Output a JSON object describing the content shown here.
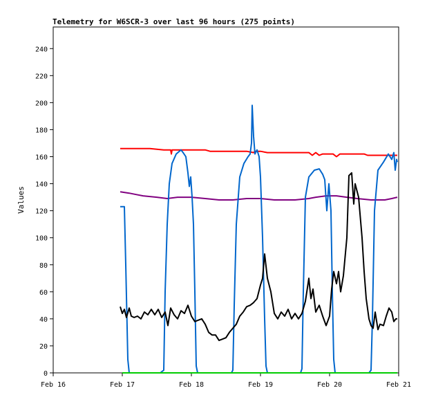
{
  "chart_data": {
    "type": "line",
    "title": "Telemetry for W6SCR-3 over last 96 hours (275 points)",
    "xlabel": "",
    "ylabel": "Values",
    "xlim": [
      0,
      5
    ],
    "ylim": [
      0,
      256
    ],
    "x_ticks": [
      {
        "x": 0,
        "label": "Feb 16"
      },
      {
        "x": 1,
        "label": "Feb 17"
      },
      {
        "x": 2,
        "label": "Feb 18"
      },
      {
        "x": 3,
        "label": "Feb 19"
      },
      {
        "x": 4,
        "label": "Feb 20"
      },
      {
        "x": 5,
        "label": "Feb 21"
      }
    ],
    "y_ticks": [
      0,
      20,
      40,
      60,
      80,
      100,
      120,
      140,
      160,
      180,
      200,
      220,
      240
    ],
    "grid": false,
    "legend": "none",
    "series": [
      {
        "color": "#ff0000",
        "points": [
          [
            0.97,
            166
          ],
          [
            1.2,
            166
          ],
          [
            1.4,
            166
          ],
          [
            1.6,
            165
          ],
          [
            1.7,
            165
          ],
          [
            1.71,
            162
          ],
          [
            1.72,
            165
          ],
          [
            2.0,
            165
          ],
          [
            2.2,
            165
          ],
          [
            2.27,
            164
          ],
          [
            2.5,
            164
          ],
          [
            2.8,
            164
          ],
          [
            2.9,
            163
          ],
          [
            2.92,
            164
          ],
          [
            3.0,
            164
          ],
          [
            3.1,
            163
          ],
          [
            3.4,
            163
          ],
          [
            3.7,
            163
          ],
          [
            3.75,
            161
          ],
          [
            3.8,
            163
          ],
          [
            3.85,
            161
          ],
          [
            3.9,
            162
          ],
          [
            4.05,
            162
          ],
          [
            4.1,
            160
          ],
          [
            4.15,
            162
          ],
          [
            4.5,
            162
          ],
          [
            4.55,
            161
          ],
          [
            4.8,
            161
          ],
          [
            4.98,
            161
          ]
        ]
      },
      {
        "color": "#800080",
        "points": [
          [
            0.97,
            134
          ],
          [
            1.1,
            133
          ],
          [
            1.2,
            132
          ],
          [
            1.3,
            131
          ],
          [
            1.5,
            130
          ],
          [
            1.65,
            129
          ],
          [
            1.8,
            130
          ],
          [
            2.0,
            130
          ],
          [
            2.2,
            129
          ],
          [
            2.4,
            128
          ],
          [
            2.6,
            128
          ],
          [
            2.8,
            129
          ],
          [
            3.0,
            129
          ],
          [
            3.2,
            128
          ],
          [
            3.5,
            128
          ],
          [
            3.7,
            129
          ],
          [
            3.8,
            130
          ],
          [
            3.95,
            131
          ],
          [
            4.1,
            131
          ],
          [
            4.25,
            130
          ],
          [
            4.4,
            129
          ],
          [
            4.6,
            128
          ],
          [
            4.8,
            128
          ],
          [
            4.9,
            129
          ],
          [
            4.98,
            130
          ]
        ]
      },
      {
        "color": "#0066cc",
        "points": [
          [
            0.97,
            123
          ],
          [
            1.03,
            123
          ],
          [
            1.05,
            80
          ],
          [
            1.08,
            10
          ],
          [
            1.1,
            0
          ],
          [
            1.55,
            0
          ],
          [
            1.6,
            2
          ],
          [
            1.62,
            60
          ],
          [
            1.65,
            110
          ],
          [
            1.68,
            140
          ],
          [
            1.72,
            155
          ],
          [
            1.78,
            162
          ],
          [
            1.85,
            165
          ],
          [
            1.88,
            163
          ],
          [
            1.92,
            160
          ],
          [
            1.95,
            148
          ],
          [
            1.97,
            138
          ],
          [
            1.99,
            145
          ],
          [
            2.01,
            130
          ],
          [
            2.03,
            110
          ],
          [
            2.05,
            60
          ],
          [
            2.07,
            5
          ],
          [
            2.09,
            0
          ],
          [
            2.58,
            0
          ],
          [
            2.6,
            2
          ],
          [
            2.62,
            50
          ],
          [
            2.65,
            110
          ],
          [
            2.7,
            145
          ],
          [
            2.76,
            155
          ],
          [
            2.82,
            160
          ],
          [
            2.85,
            162
          ],
          [
            2.87,
            170
          ],
          [
            2.88,
            198
          ],
          [
            2.9,
            175
          ],
          [
            2.92,
            162
          ],
          [
            2.95,
            165
          ],
          [
            2.98,
            160
          ],
          [
            3.0,
            145
          ],
          [
            3.03,
            100
          ],
          [
            3.06,
            40
          ],
          [
            3.08,
            5
          ],
          [
            3.1,
            0
          ],
          [
            3.58,
            0
          ],
          [
            3.6,
            3
          ],
          [
            3.62,
            60
          ],
          [
            3.65,
            130
          ],
          [
            3.7,
            145
          ],
          [
            3.78,
            150
          ],
          [
            3.85,
            151
          ],
          [
            3.9,
            147
          ],
          [
            3.93,
            143
          ],
          [
            3.96,
            120
          ],
          [
            3.99,
            140
          ],
          [
            4.02,
            120
          ],
          [
            4.04,
            60
          ],
          [
            4.06,
            10
          ],
          [
            4.08,
            0
          ],
          [
            4.57,
            0
          ],
          [
            4.6,
            2
          ],
          [
            4.62,
            40
          ],
          [
            4.65,
            120
          ],
          [
            4.7,
            150
          ],
          [
            4.78,
            156
          ],
          [
            4.85,
            162
          ],
          [
            4.9,
            158
          ],
          [
            4.93,
            163
          ],
          [
            4.95,
            150
          ],
          [
            4.97,
            158
          ],
          [
            4.98,
            156
          ]
        ]
      },
      {
        "color": "#000000",
        "points": [
          [
            0.97,
            49
          ],
          [
            1.0,
            44
          ],
          [
            1.03,
            47
          ],
          [
            1.06,
            41
          ],
          [
            1.1,
            48
          ],
          [
            1.13,
            42
          ],
          [
            1.17,
            41
          ],
          [
            1.22,
            42
          ],
          [
            1.27,
            40
          ],
          [
            1.32,
            45
          ],
          [
            1.37,
            43
          ],
          [
            1.42,
            47
          ],
          [
            1.47,
            43
          ],
          [
            1.52,
            47
          ],
          [
            1.57,
            41
          ],
          [
            1.62,
            45
          ],
          [
            1.66,
            35
          ],
          [
            1.7,
            48
          ],
          [
            1.75,
            43
          ],
          [
            1.8,
            40
          ],
          [
            1.85,
            46
          ],
          [
            1.9,
            44
          ],
          [
            1.95,
            50
          ],
          [
            2.0,
            42
          ],
          [
            2.05,
            38
          ],
          [
            2.1,
            39
          ],
          [
            2.15,
            40
          ],
          [
            2.2,
            36
          ],
          [
            2.25,
            30
          ],
          [
            2.3,
            28
          ],
          [
            2.35,
            28
          ],
          [
            2.4,
            24
          ],
          [
            2.45,
            25
          ],
          [
            2.5,
            26
          ],
          [
            2.55,
            30
          ],
          [
            2.6,
            33
          ],
          [
            2.65,
            36
          ],
          [
            2.7,
            42
          ],
          [
            2.75,
            45
          ],
          [
            2.8,
            49
          ],
          [
            2.85,
            50
          ],
          [
            2.9,
            52
          ],
          [
            2.95,
            55
          ],
          [
            3.0,
            65
          ],
          [
            3.03,
            70
          ],
          [
            3.06,
            88
          ],
          [
            3.1,
            70
          ],
          [
            3.15,
            60
          ],
          [
            3.2,
            44
          ],
          [
            3.25,
            40
          ],
          [
            3.3,
            45
          ],
          [
            3.35,
            42
          ],
          [
            3.4,
            47
          ],
          [
            3.45,
            40
          ],
          [
            3.5,
            44
          ],
          [
            3.55,
            40
          ],
          [
            3.6,
            44
          ],
          [
            3.65,
            53
          ],
          [
            3.7,
            70
          ],
          [
            3.73,
            55
          ],
          [
            3.76,
            62
          ],
          [
            3.8,
            45
          ],
          [
            3.85,
            50
          ],
          [
            3.9,
            42
          ],
          [
            3.95,
            35
          ],
          [
            4.0,
            42
          ],
          [
            4.03,
            62
          ],
          [
            4.06,
            75
          ],
          [
            4.1,
            66
          ],
          [
            4.13,
            75
          ],
          [
            4.16,
            60
          ],
          [
            4.2,
            72
          ],
          [
            4.25,
            100
          ],
          [
            4.28,
            146
          ],
          [
            4.32,
            148
          ],
          [
            4.35,
            125
          ],
          [
            4.37,
            140
          ],
          [
            4.42,
            130
          ],
          [
            4.47,
            100
          ],
          [
            4.5,
            75
          ],
          [
            4.53,
            55
          ],
          [
            4.57,
            40
          ],
          [
            4.6,
            35
          ],
          [
            4.63,
            33
          ],
          [
            4.66,
            45
          ],
          [
            4.7,
            32
          ],
          [
            4.73,
            36
          ],
          [
            4.78,
            35
          ],
          [
            4.82,
            42
          ],
          [
            4.86,
            48
          ],
          [
            4.9,
            45
          ],
          [
            4.93,
            38
          ],
          [
            4.96,
            40
          ],
          [
            4.98,
            40
          ]
        ]
      },
      {
        "color": "#00cc00",
        "points": [
          [
            1.0,
            0
          ],
          [
            4.98,
            0
          ]
        ]
      }
    ]
  }
}
